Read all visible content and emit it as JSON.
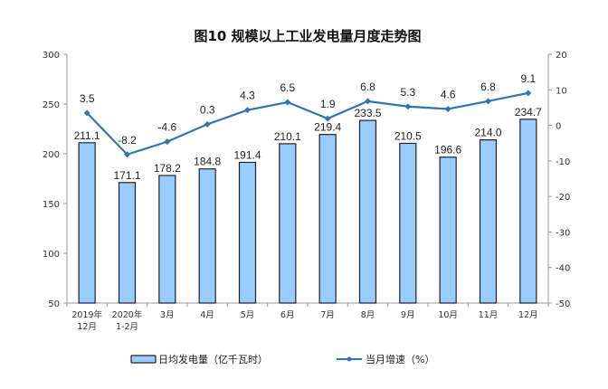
{
  "chart_data": {
    "type": "bar+line",
    "title": "图10  规模以上工业发电量月度走势图",
    "categories": [
      [
        "2019年",
        "12月"
      ],
      [
        "2020年",
        "1-2月"
      ],
      [
        "3月"
      ],
      [
        "4月"
      ],
      [
        "5月"
      ],
      [
        "6月"
      ],
      [
        "7月"
      ],
      [
        "8月"
      ],
      [
        "9月"
      ],
      [
        "10月"
      ],
      [
        "11月"
      ],
      [
        "12月"
      ]
    ],
    "series": [
      {
        "name": "日均发电量（亿千瓦时）",
        "type": "bar",
        "axis": "left",
        "color": "#99CCFF",
        "values": [
          211.1,
          171.1,
          178.2,
          184.8,
          191.4,
          210.1,
          219.4,
          233.5,
          210.5,
          196.6,
          214.0,
          234.7
        ]
      },
      {
        "name": "当月增速（%）",
        "type": "line",
        "axis": "right",
        "color": "#2E75B6",
        "values": [
          3.5,
          -8.2,
          -4.6,
          0.3,
          4.3,
          6.5,
          1.9,
          6.8,
          5.3,
          4.6,
          6.8,
          9.1
        ]
      }
    ],
    "left_axis": {
      "range": [
        50,
        300
      ],
      "ticks": [
        50,
        100,
        150,
        200,
        250,
        300
      ]
    },
    "right_axis": {
      "range": [
        -50,
        20
      ],
      "ticks": [
        -50,
        -40,
        -30,
        -20,
        -10,
        0,
        10,
        20
      ]
    },
    "legend_position": "bottom",
    "grid": false
  }
}
